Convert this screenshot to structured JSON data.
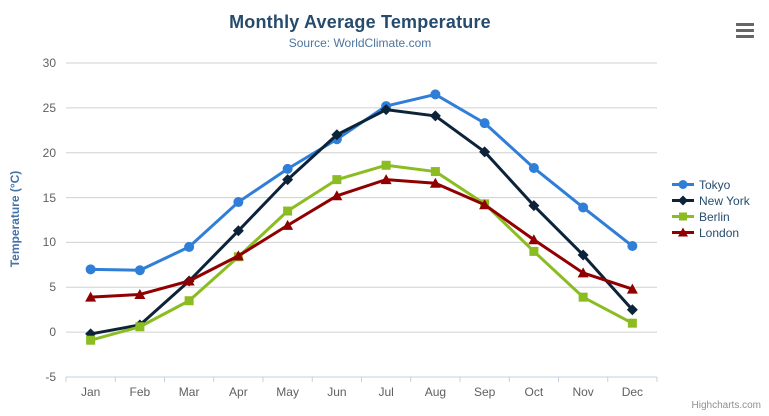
{
  "chart": {
    "title": "Monthly Average Temperature",
    "subtitle": "Source: WorldClimate.com",
    "credits": "Highcharts.com",
    "context_menu_icon": "hamburger-menu-icon"
  },
  "chart_data": {
    "type": "line",
    "title": "Monthly Average Temperature",
    "subtitle": "Source: WorldClimate.com",
    "categories": [
      "Jan",
      "Feb",
      "Mar",
      "Apr",
      "May",
      "Jun",
      "Jul",
      "Aug",
      "Sep",
      "Oct",
      "Nov",
      "Dec"
    ],
    "series": [
      {
        "name": "Tokyo",
        "color": "#2f7ed8",
        "marker": "circle",
        "values": [
          7.0,
          6.9,
          9.5,
          14.5,
          18.2,
          21.5,
          25.2,
          26.5,
          23.3,
          18.3,
          13.9,
          9.6
        ]
      },
      {
        "name": "New York",
        "color": "#0d233a",
        "marker": "diamond",
        "values": [
          -0.2,
          0.8,
          5.7,
          11.3,
          17.0,
          22.0,
          24.8,
          24.1,
          20.1,
          14.1,
          8.6,
          2.5
        ]
      },
      {
        "name": "Berlin",
        "color": "#8bbc21",
        "marker": "square",
        "values": [
          -0.9,
          0.6,
          3.5,
          8.4,
          13.5,
          17.0,
          18.6,
          17.9,
          14.3,
          9.0,
          3.9,
          1.0
        ]
      },
      {
        "name": "London",
        "color": "#910000",
        "marker": "triangle",
        "values": [
          3.9,
          4.2,
          5.7,
          8.5,
          11.9,
          15.2,
          17.0,
          16.6,
          14.2,
          10.3,
          6.6,
          4.8
        ]
      }
    ],
    "xlabel": "",
    "ylabel": "Temperature (°C)",
    "ylim": [
      -5,
      30
    ],
    "yticks": [
      -5,
      0,
      5,
      10,
      15,
      20,
      25,
      30
    ],
    "grid": true,
    "legend_position": "right"
  },
  "colors": {
    "grid_line": "#d0d0d0",
    "axis_line": "#c0d0e0",
    "axis_label": "#606060",
    "axis_title": "#4572a7",
    "title_text": "#274b6d",
    "subtitle_text": "#4d759e",
    "legend_text": "#274b6d",
    "credits_text": "#909090",
    "menu_icon": "#666666",
    "background": "#ffffff"
  }
}
